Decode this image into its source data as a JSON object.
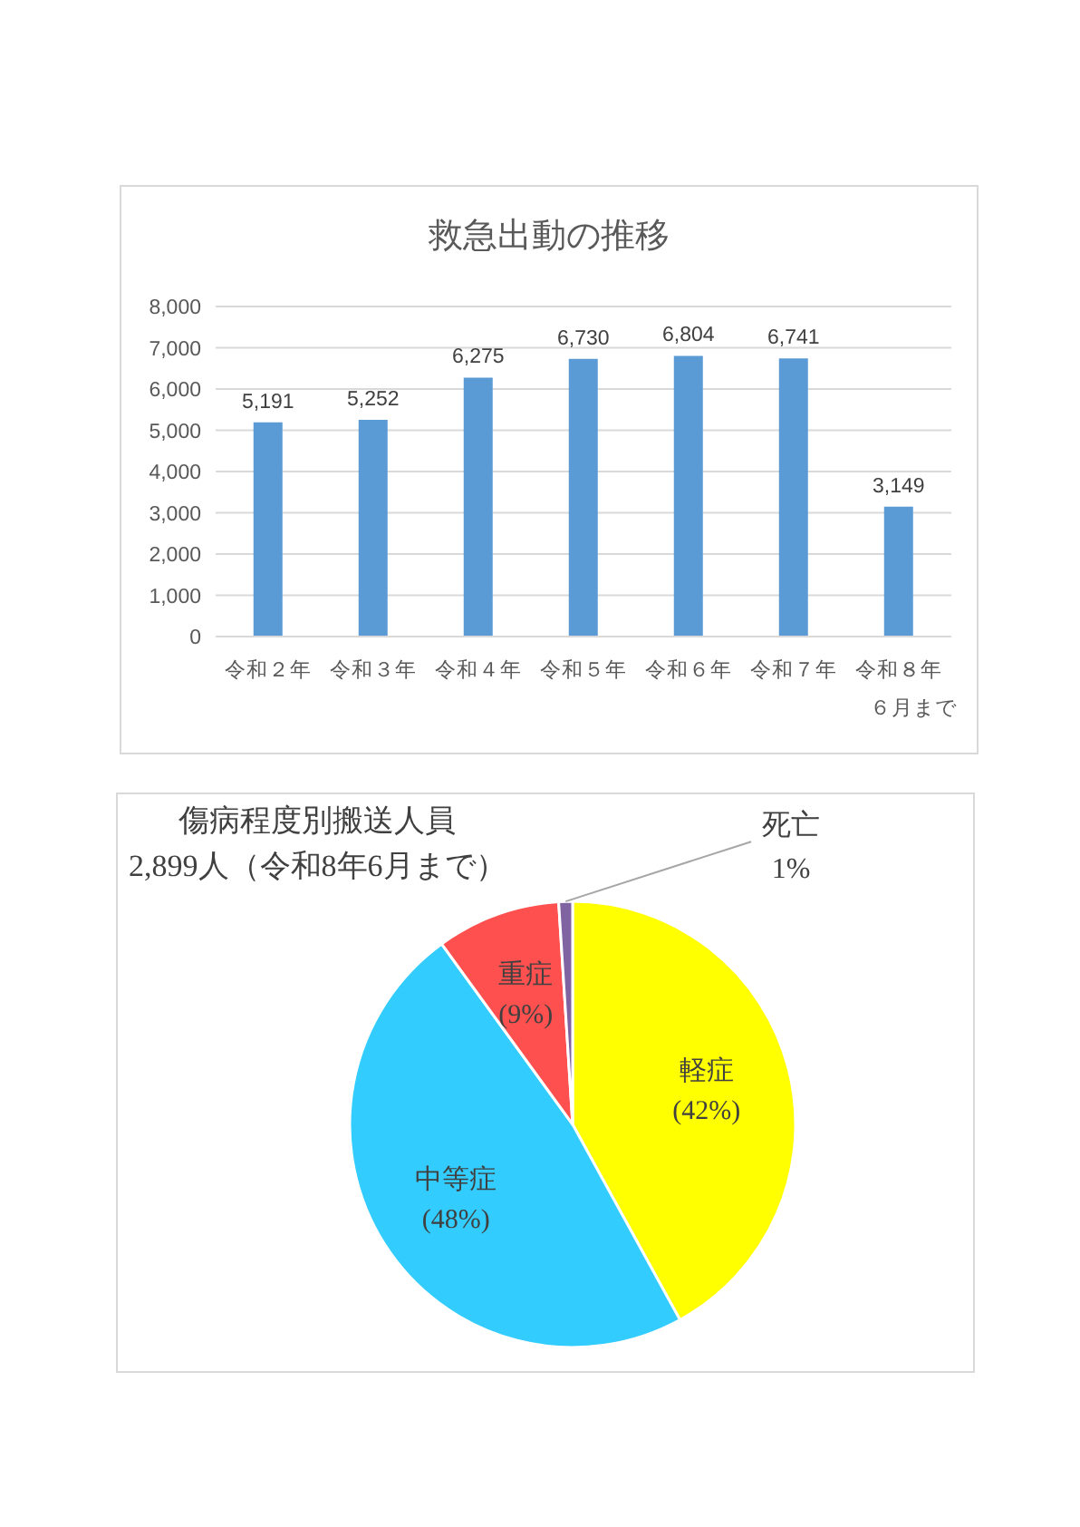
{
  "chart_data": [
    {
      "type": "bar",
      "title": "救急出動の推移",
      "categories": [
        "令和２年",
        "令和３年",
        "令和４年",
        "令和５年",
        "令和６年",
        "令和７年",
        "令和８年６月まで"
      ],
      "values": [
        5191,
        5252,
        6275,
        6730,
        6804,
        6741,
        3149
      ],
      "value_labels": [
        "5,191",
        "5,252",
        "6,275",
        "6,730",
        "6,804",
        "6,741",
        "3,149"
      ],
      "color": "#5b9bd5",
      "ylim": [
        0,
        8000
      ],
      "yticks": [
        0,
        {
          "value": 1000,
          "label": "1,000"
        },
        {
          "value": 2000,
          "label": "2,000"
        },
        {
          "value": 3000,
          "label": "3,000"
        },
        {
          "value": 4000,
          "label": "4,000"
        },
        {
          "value": 5000,
          "label": "5,000"
        },
        {
          "value": 6000,
          "label": "6,000"
        },
        {
          "value": 7000,
          "label": "7,000"
        },
        {
          "value": 8000,
          "label": "8,000"
        }
      ],
      "grid": "y"
    },
    {
      "type": "pie",
      "title": "傷病程度別搬送人員",
      "subtitle": "2,899人（令和8年6月まで）",
      "categories": [
        "軽症",
        "中等症",
        "重症",
        "死亡"
      ],
      "values": [
        42,
        48,
        9,
        1
      ],
      "colors": [
        "#ffff00",
        "#33ccff",
        "#ff5050",
        "#8064a2"
      ],
      "value_labels": [
        "(42%)",
        "(48%)",
        "(9%)",
        "1%"
      ]
    }
  ]
}
